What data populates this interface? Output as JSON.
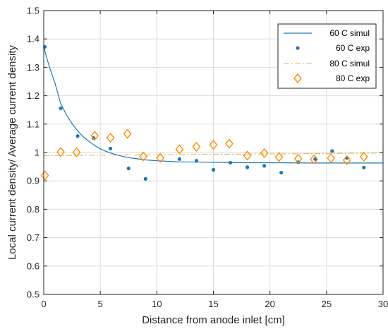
{
  "chart_data": {
    "type": "line",
    "title": "",
    "xlabel": "Distance from anode inlet [cm]",
    "ylabel": "Local current density/ Average current density",
    "xlim": [
      0,
      30
    ],
    "ylim": [
      0.5,
      1.5
    ],
    "x_ticks": [
      "0",
      "5",
      "10",
      "15",
      "20",
      "25",
      "30"
    ],
    "y_ticks": [
      "0.5",
      "0.6",
      "0.7",
      "0.8",
      "0.9",
      "1",
      "1.1",
      "1.2",
      "1.3",
      "1.4",
      "1.5"
    ],
    "grid": true,
    "legend_position": "top-right",
    "series": [
      {
        "name": "60 C simul",
        "style": "solid line",
        "color": "#1f77b4",
        "x": [
          0,
          0.5,
          1,
          1.5,
          2,
          2.5,
          3,
          3.5,
          4,
          4.5,
          5,
          5.5,
          6,
          6.5,
          7,
          7.5,
          8,
          9,
          10,
          11,
          12,
          14,
          16,
          18,
          20,
          24,
          28,
          30
        ],
        "y": [
          1.372,
          1.301,
          1.244,
          1.173,
          1.133,
          1.102,
          1.076,
          1.055,
          1.039,
          1.025,
          1.013,
          1.004,
          0.997,
          0.991,
          0.986,
          0.982,
          0.979,
          0.974,
          0.971,
          0.969,
          0.967,
          0.966,
          0.965,
          0.964,
          0.964,
          0.963,
          0.963,
          0.963
        ]
      },
      {
        "name": "60 C exp",
        "style": "dots",
        "color": "#1f77b4",
        "x": [
          0.1,
          1.5,
          3.0,
          4.4,
          5.9,
          7.5,
          9.0,
          12.0,
          13.5,
          15.0,
          16.5,
          18.0,
          19.5,
          21.0,
          22.5,
          24.0,
          25.5,
          26.8,
          28.3
        ],
        "y": [
          1.372,
          1.156,
          1.058,
          1.051,
          1.014,
          0.944,
          0.907,
          0.977,
          0.971,
          0.939,
          0.964,
          0.948,
          0.953,
          0.929,
          0.966,
          0.977,
          1.005,
          0.981,
          0.947
        ]
      },
      {
        "name": "80 C simul",
        "style": "dash-dot line",
        "color": "#e0b050",
        "x": [
          0,
          30
        ],
        "y": [
          0.989,
          0.998
        ]
      },
      {
        "name": "80 C exp",
        "style": "diamonds",
        "color": "#ff8c00",
        "x": [
          0.1,
          1.5,
          2.9,
          4.5,
          5.9,
          7.4,
          8.8,
          10.3,
          12.0,
          13.5,
          15.0,
          16.4,
          18.0,
          19.5,
          20.8,
          22.5,
          23.9,
          25.4,
          26.8,
          28.3
        ],
        "y": [
          0.919,
          1.002,
          1.001,
          1.059,
          1.052,
          1.066,
          0.986,
          0.981,
          1.011,
          1.02,
          1.027,
          1.031,
          0.989,
          0.998,
          0.984,
          0.978,
          0.976,
          0.98,
          0.973,
          0.985
        ]
      }
    ]
  }
}
